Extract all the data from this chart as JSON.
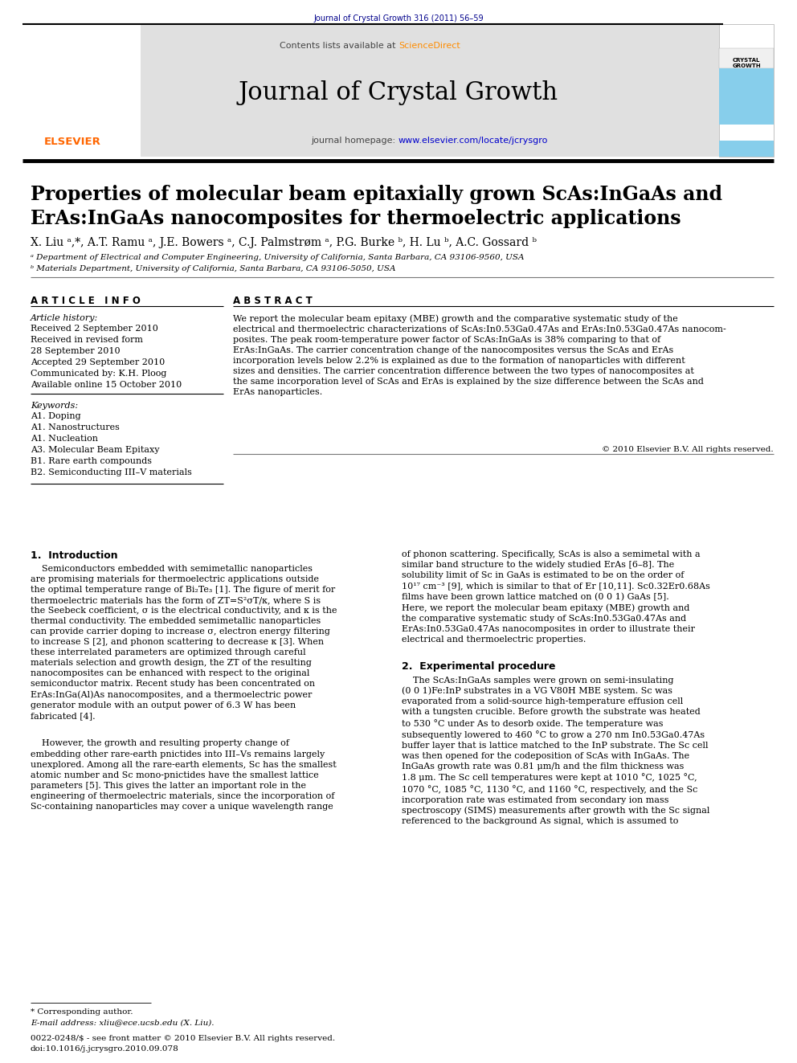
{
  "page_bg": "#ffffff",
  "top_journal_ref": "Journal of Crystal Growth 316 (2011) 56–59",
  "top_journal_ref_color": "#00008B",
  "header_bg": "#e0e0e0",
  "header_contents_text": "Contents lists available at ",
  "header_sciencedirect": "ScienceDirect",
  "header_sciencedirect_color": "#FF8C00",
  "header_journal_title": "Journal of Crystal Growth",
  "header_homepage_text": "journal homepage: ",
  "header_homepage_url": "www.elsevier.com/locate/jcrysgro",
  "header_url_color": "#0000cc",
  "elsevier_color": "#FF6600",
  "article_title_line1": "Properties of molecular beam epitaxially grown ScAs:InGaAs and",
  "article_title_line2": "ErAs:InGaAs nanocomposites for thermoelectric applications",
  "authors_line": "X. Liu ᵃ,*, A.T. Ramu ᵃ, J.E. Bowers ᵃ, C.J. Palmstrøm ᵃ, P.G. Burke ᵇ, H. Lu ᵇ, A.C. Gossard ᵇ",
  "affil_a": "ᵃ Department of Electrical and Computer Engineering, University of California, Santa Barbara, CA 93106-9560, USA",
  "affil_b": "ᵇ Materials Department, University of California, Santa Barbara, CA 93106-5050, USA",
  "article_info_title": "A R T I C L E   I N F O",
  "abstract_title": "A B S T R A C T",
  "article_history_label": "Article history:",
  "history_lines": [
    "Received 2 September 2010",
    "Received in revised form",
    "28 September 2010",
    "Accepted 29 September 2010",
    "Communicated by: K.H. Ploog",
    "Available online 15 October 2010"
  ],
  "keywords_label": "Keywords:",
  "keywords": [
    "A1. Doping",
    "A1. Nanostructures",
    "A1. Nucleation",
    "A3. Molecular Beam Epitaxy",
    "B1. Rare earth compounds",
    "B2. Semiconducting III–V materials"
  ],
  "copyright": "© 2010 Elsevier B.V. All rights reserved.",
  "abstract_text": "We report the molecular beam epitaxy (MBE) growth and the comparative systematic study of the\nelectrical and thermoelectric characterizations of ScAs:In0.53Ga0.47As and ErAs:In0.53Ga0.47As nanocom-\nposites. The peak room-temperature power factor of ScAs:InGaAs is 38% comparing to that of\nErAs:InGaAs. The carrier concentration change of the nanocomposites versus the ScAs and ErAs\nincorporation levels below 2.2% is explained as due to the formation of nanoparticles with different\nsizes and densities. The carrier concentration difference between the two types of nanocomposites at\nthe same incorporation level of ScAs and ErAs is explained by the size difference between the ScAs and\nErAs nanoparticles.",
  "intro_title": "1.  Introduction",
  "intro_p1": "    Semiconductors embedded with semimetallic nanoparticles\nare promising materials for thermoelectric applications outside\nthe optimal temperature range of Bi₂Te₃ [1]. The figure of merit for\nthermoelectric materials has the form of ZT=S²σT/κ, where S is\nthe Seebeck coefficient, σ is the electrical conductivity, and κ is the\nthermal conductivity. The embedded semimetallic nanoparticles\ncan provide carrier doping to increase σ, electron energy filtering\nto increase S [2], and phonon scattering to decrease κ [3]. When\nthese interrelated parameters are optimized through careful\nmaterials selection and growth design, the ZT of the resulting\nnanocomposites can be enhanced with respect to the original\nsemiconductor matrix. Recent study has been concentrated on\nErAs:InGa(Al)As nanocomposites, and a thermoelectric power\ngenerator module with an output power of 6.3 W has been\nfabricated [4].",
  "intro_p2": "    However, the growth and resulting property change of\nembedding other rare-earth pnictides into III–Vs remains largely\nunexplored. Among all the rare-earth elements, Sc has the smallest\natomic number and Sc mono-pnictides have the smallest lattice\nparameters [5]. This gives the latter an important role in the\nengineering of thermoelectric materials, since the incorporation of\nSc-containing nanoparticles may cover a unique wavelength range",
  "intro_col2_p1": "of phonon scattering. Specifically, ScAs is also a semimetal with a\nsimilar band structure to the widely studied ErAs [6–8]. The\nsolubility limit of Sc in GaAs is estimated to be on the order of\n10¹⁷ cm⁻³ [9], which is similar to that of Er [10,11]. Sc0.32Er0.68As\nfilms have been grown lattice matched on (0 0 1) GaAs [5].\nHere, we report the molecular beam epitaxy (MBE) growth and\nthe comparative systematic study of ScAs:In0.53Ga0.47As and\nErAs:In0.53Ga0.47As nanocomposites in order to illustrate their\nelectrical and thermoelectric properties.",
  "exp_title": "2.  Experimental procedure",
  "exp_p1": "    The ScAs:InGaAs samples were grown on semi-insulating\n(0 0 1)Fe:InP substrates in a VG V80H MBE system. Sc was\nevaporated from a solid-source high-temperature effusion cell\nwith a tungsten crucible. Before growth the substrate was heated\nto 530 °C under As to desorb oxide. The temperature was\nsubsequently lowered to 460 °C to grow a 270 nm In0.53Ga0.47As\nbuffer layer that is lattice matched to the InP substrate. The Sc cell\nwas then opened for the codeposition of ScAs with InGaAs. The\nInGaAs growth rate was 0.81 μm/h and the film thickness was\n1.8 μm. The Sc cell temperatures were kept at 1010 °C, 1025 °C,\n1070 °C, 1085 °C, 1130 °C, and 1160 °C, respectively, and the Sc\nincorporation rate was estimated from secondary ion mass\nspectroscopy (SIMS) measurements after growth with the Sc signal\nreferenced to the background As signal, which is assumed to",
  "footer_line1": "* Corresponding author.",
  "footer_line2": "E-mail address: xliu@ece.ucsb.edu (X. Liu).",
  "footer_line3": "0022-0248/$ - see front matter © 2010 Elsevier B.V. All rights reserved.",
  "footer_line4": "doi:10.1016/j.jcrysgro.2010.09.078",
  "cyan_color": "#87CEEB"
}
